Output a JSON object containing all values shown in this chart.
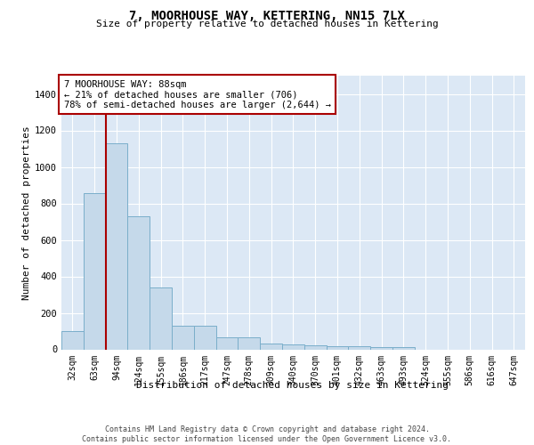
{
  "title1": "7, MOORHOUSE WAY, KETTERING, NN15 7LX",
  "title2": "Size of property relative to detached houses in Kettering",
  "xlabel": "Distribution of detached houses by size in Kettering",
  "ylabel": "Number of detached properties",
  "categories": [
    "32sqm",
    "63sqm",
    "94sqm",
    "124sqm",
    "155sqm",
    "186sqm",
    "217sqm",
    "247sqm",
    "278sqm",
    "309sqm",
    "340sqm",
    "370sqm",
    "401sqm",
    "432sqm",
    "463sqm",
    "493sqm",
    "524sqm",
    "555sqm",
    "586sqm",
    "616sqm",
    "647sqm"
  ],
  "values": [
    100,
    855,
    1130,
    730,
    340,
    130,
    130,
    65,
    65,
    30,
    25,
    20,
    15,
    15,
    10,
    10,
    0,
    0,
    0,
    0,
    0
  ],
  "bar_color": "#c5d9ea",
  "bar_edge_color": "#7aaeca",
  "vline_color": "#aa0000",
  "annotation_text": "7 MOORHOUSE WAY: 88sqm\n← 21% of detached houses are smaller (706)\n78% of semi-detached houses are larger (2,644) →",
  "ylim": [
    0,
    1500
  ],
  "yticks": [
    0,
    200,
    400,
    600,
    800,
    1000,
    1200,
    1400
  ],
  "axes_bg": "#dce8f5",
  "grid_color": "#ffffff",
  "footer1": "Contains HM Land Registry data © Crown copyright and database right 2024.",
  "footer2": "Contains public sector information licensed under the Open Government Licence v3.0."
}
